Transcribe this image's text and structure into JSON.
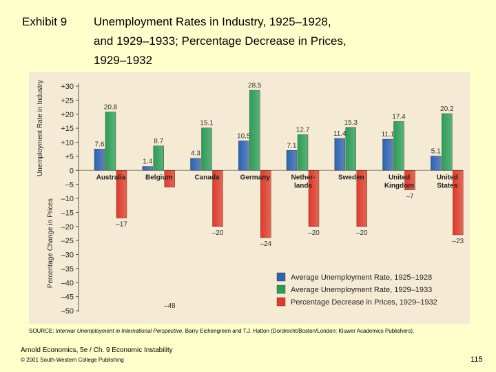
{
  "slide": {
    "exhibit_label": "Exhibit 9",
    "title_lines": [
      "Unemployment Rates in Industry, 1925–1928,",
      "and 1929–1933; Percentage Decrease in Prices,",
      "1929–1932"
    ],
    "source_prefix": "SOURCE: ",
    "source_italic": "Interwar Unemployment in International Perspective",
    "source_rest": ", Barry Eichengreen and T.J. Hatton (Dordrecht/Boston/London: Kluwer Academics Publishers).",
    "footer_book": "Arnold Economics, 5e / Ch. 9 Economic Instability",
    "footer_copyright": "© 2001 South-Western College Publishing",
    "page_number": "115"
  },
  "chart_data": {
    "type": "bar",
    "categories": [
      "Australia",
      "Belgium",
      "Canada",
      "Germany",
      "Nether-\nlands",
      "Sweden",
      "United\nKingdom",
      "United\nStates"
    ],
    "series": [
      {
        "name": "Average Unemployment Rate, 1925–1928",
        "color": "#2b63b5",
        "values": [
          7.6,
          1.4,
          4.3,
          10.5,
          7.1,
          11.4,
          11.1,
          5.1
        ]
      },
      {
        "name": "Average Unemployment Rate, 1929–1933",
        "color": "#2a9e57",
        "values": [
          20.8,
          8.7,
          15.1,
          28.5,
          12.7,
          15.3,
          17.4,
          20.2
        ]
      },
      {
        "name": "Percentage Decrease  in Prices, 1929–1932",
        "color": "#e03a2a",
        "values": [
          -17,
          -6,
          -20,
          -24,
          -20,
          -20,
          -7,
          -23
        ]
      }
    ],
    "data_labels": [
      [
        "7.6",
        "1.4",
        "4.3",
        "10.5",
        "7.1",
        "11.4",
        "11.1",
        "5.1"
      ],
      [
        "20.8",
        "8.7",
        "15.1",
        "28.5",
        "12.7",
        "15.3",
        "17.4",
        "20.2"
      ],
      [
        "–17",
        "",
        "–20",
        "–24",
        "–20",
        "–20",
        "–7",
        "–23"
      ]
    ],
    "yticks": [
      "+30",
      "+25",
      "+20",
      "+15",
      "+10",
      "+5",
      "0",
      "–5",
      "–10",
      "–15",
      "–20",
      "–25",
      "–30",
      "–35",
      "–40",
      "–45",
      "–50"
    ],
    "ylim": [
      -50,
      30
    ],
    "ylabel_top": "Unemployment Rate in Industry",
    "ylabel_bottom": "Percentage Change in Prices",
    "extra_label": {
      "text": "–48",
      "value": -48
    },
    "legend_position": "bottom-right"
  }
}
